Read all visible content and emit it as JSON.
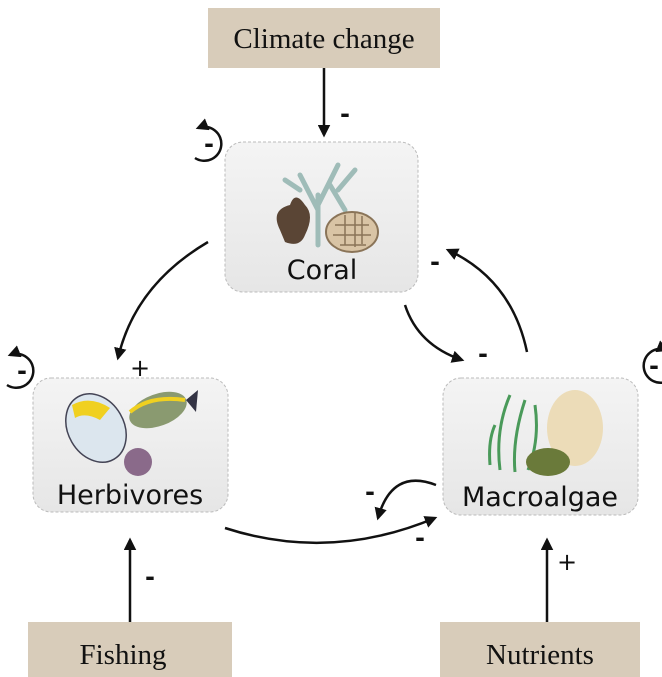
{
  "drivers": [
    {
      "label": "Climate change"
    },
    {
      "label": "Fishing"
    },
    {
      "label": "Nutrients"
    }
  ],
  "nodes": [
    {
      "label": "Coral"
    },
    {
      "label": "Herbivores"
    },
    {
      "label": "Macroalgae"
    }
  ],
  "signs": [
    "-",
    "-",
    "-",
    "-",
    "+",
    "-",
    "-",
    "-",
    "-",
    "-",
    "+"
  ]
}
